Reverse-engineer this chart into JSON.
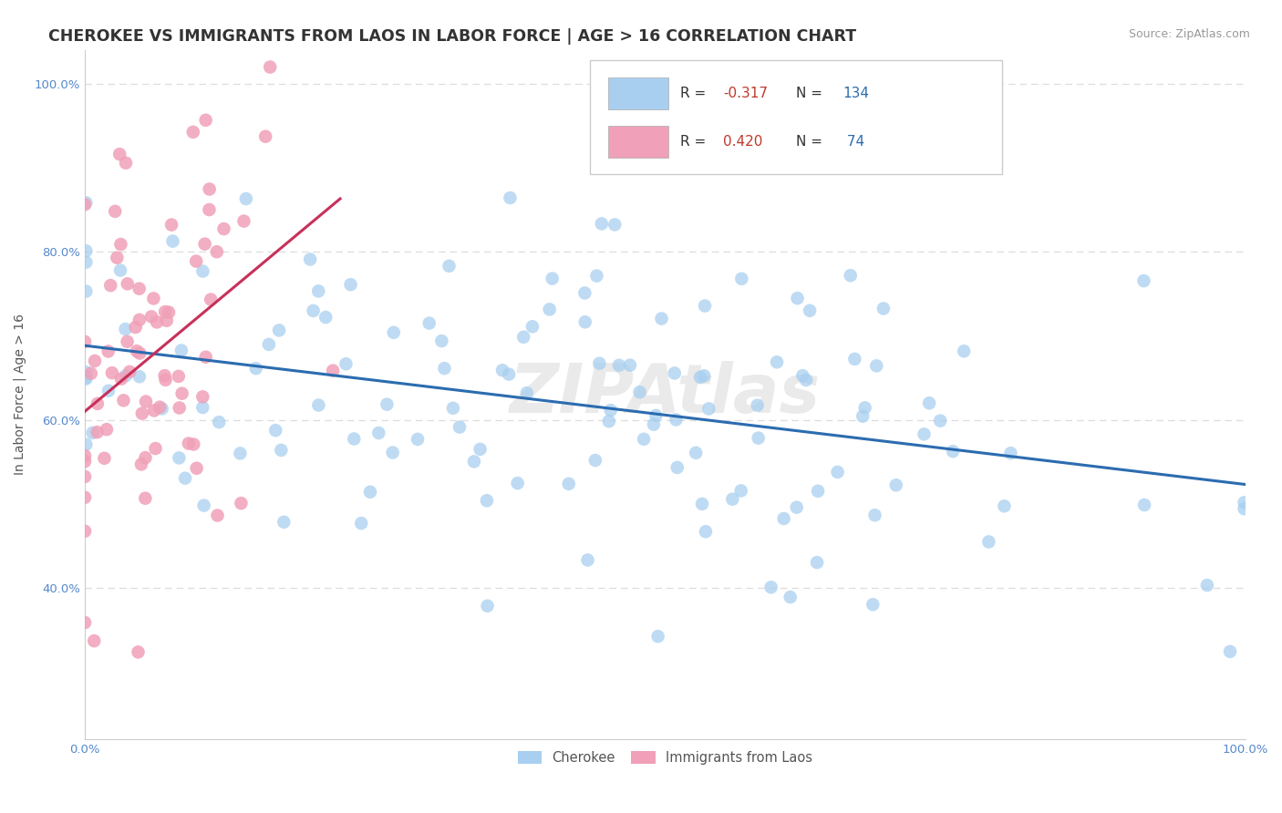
{
  "title": "CHEROKEE VS IMMIGRANTS FROM LAOS IN LABOR FORCE | AGE > 16 CORRELATION CHART",
  "source": "Source: ZipAtlas.com",
  "ylabel": "In Labor Force | Age > 16",
  "blue_color": "#A8CFF0",
  "pink_color": "#F0A0B8",
  "blue_line_color": "#2B6CB0",
  "pink_line_color": "#C8305A",
  "background_color": "#FFFFFF",
  "grid_color": "#DDDDDD",
  "cherokee_R": -0.317,
  "cherokee_N": 134,
  "laos_R": 0.42,
  "laos_N": 74,
  "xlim": [
    0.0,
    1.0
  ],
  "ylim": [
    0.22,
    1.04
  ],
  "yticks": [
    0.4,
    0.6,
    0.8,
    1.0
  ],
  "ytick_labels": [
    "40.0%",
    "60.0%",
    "80.0%",
    "100.0%"
  ],
  "xticks": [
    0.0,
    1.0
  ],
  "xtick_labels": [
    "0.0%",
    "100.0%"
  ],
  "tick_color": "#5588CC",
  "title_color": "#333333",
  "source_color": "#999999",
  "ylabel_color": "#555555"
}
